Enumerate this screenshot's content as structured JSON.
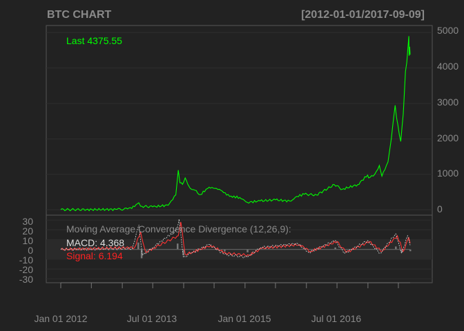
{
  "chart_data": [
    {
      "type": "line",
      "title": "BTC CHART",
      "date_range": "[2012-01-01/2017-09-09]",
      "last_label": "Last 4375.55",
      "series": [
        {
          "color": "#00ff00",
          "points": [
            [
              "2012-01-01",
              6
            ],
            [
              "2012-06-01",
              6
            ],
            [
              "2012-12-01",
              13
            ],
            [
              "2013-02-01",
              25
            ],
            [
              "2013-03-15",
              90
            ],
            [
              "2013-04-09",
              200
            ],
            [
              "2013-04-20",
              100
            ],
            [
              "2013-07-01",
              85
            ],
            [
              "2013-10-01",
              130
            ],
            [
              "2013-11-15",
              420
            ],
            [
              "2013-11-30",
              1120
            ],
            [
              "2013-12-10",
              760
            ],
            [
              "2013-12-25",
              720
            ],
            [
              "2014-01-10",
              900
            ],
            [
              "2014-02-10",
              600
            ],
            [
              "2014-03-01",
              570
            ],
            [
              "2014-04-10",
              430
            ],
            [
              "2014-06-01",
              640
            ],
            [
              "2014-08-01",
              580
            ],
            [
              "2014-10-01",
              380
            ],
            [
              "2014-12-01",
              350
            ],
            [
              "2015-01-15",
              210
            ],
            [
              "2015-04-01",
              250
            ],
            [
              "2015-07-01",
              280
            ],
            [
              "2015-10-01",
              245
            ],
            [
              "2015-11-05",
              380
            ],
            [
              "2015-12-20",
              440
            ],
            [
              "2016-03-01",
              420
            ],
            [
              "2016-06-15",
              710
            ],
            [
              "2016-08-01",
              580
            ],
            [
              "2016-11-01",
              710
            ],
            [
              "2016-12-30",
              980
            ],
            [
              "2017-01-05",
              900
            ],
            [
              "2017-02-10",
              1000
            ],
            [
              "2017-03-10",
              1250
            ],
            [
              "2017-03-25",
              950
            ],
            [
              "2017-04-30",
              1350
            ],
            [
              "2017-05-20",
              2000
            ],
            [
              "2017-06-12",
              2950
            ],
            [
              "2017-06-20",
              2600
            ],
            [
              "2017-07-15",
              1930
            ],
            [
              "2017-07-30",
              2700
            ],
            [
              "2017-08-12",
              3900
            ],
            [
              "2017-08-20",
              4150
            ],
            [
              "2017-09-01",
              4900
            ],
            [
              "2017-09-03",
              4350
            ],
            [
              "2017-09-06",
              4600
            ],
            [
              "2017-09-09",
              4375.55
            ]
          ]
        }
      ],
      "ylim": [
        -150,
        5200
      ],
      "yticks": [
        0,
        1000,
        2000,
        3000,
        4000,
        5000
      ]
    },
    {
      "type": "line",
      "title": "Moving Average Convergence Divergence (12,26,9):",
      "macd_label": "MACD: 4.368",
      "signal_label": "Signal: 6.194",
      "ylim": [
        -34,
        35
      ],
      "yticks": [
        30,
        20,
        10,
        0,
        -10,
        -20,
        -30
      ],
      "series": [
        {
          "color": "#dddddd",
          "points": [
            [
              "2012-01-01",
              0
            ],
            [
              "2013-03-01",
              1
            ],
            [
              "2013-04-10",
              25
            ],
            [
              "2013-05-01",
              -6
            ],
            [
              "2013-07-01",
              2
            ],
            [
              "2013-11-20",
              20
            ],
            [
              "2013-12-05",
              31
            ],
            [
              "2013-12-30",
              -8
            ],
            [
              "2014-02-15",
              -4
            ],
            [
              "2014-06-01",
              5
            ],
            [
              "2014-09-01",
              -5
            ],
            [
              "2015-01-15",
              -8
            ],
            [
              "2015-04-01",
              2
            ],
            [
              "2015-11-10",
              6
            ],
            [
              "2016-01-15",
              -3
            ],
            [
              "2016-06-20",
              9
            ],
            [
              "2016-08-15",
              -4
            ],
            [
              "2016-12-31",
              9
            ],
            [
              "2017-03-15",
              -4
            ],
            [
              "2017-06-15",
              16
            ],
            [
              "2017-07-20",
              -4
            ],
            [
              "2017-08-25",
              14
            ],
            [
              "2017-09-09",
              4.368
            ]
          ]
        },
        {
          "color": "#ff3333",
          "points": [
            [
              "2012-01-01",
              0
            ],
            [
              "2013-03-15",
              2
            ],
            [
              "2013-04-20",
              18
            ],
            [
              "2013-05-20",
              -3
            ],
            [
              "2013-07-01",
              1
            ],
            [
              "2013-11-30",
              14
            ],
            [
              "2013-12-15",
              28
            ],
            [
              "2014-01-10",
              -5
            ],
            [
              "2014-02-20",
              -3
            ],
            [
              "2014-06-10",
              4
            ],
            [
              "2014-09-10",
              -4
            ],
            [
              "2015-01-25",
              -6
            ],
            [
              "2015-04-10",
              1
            ],
            [
              "2015-11-20",
              5
            ],
            [
              "2016-01-25",
              -2
            ],
            [
              "2016-07-01",
              8
            ],
            [
              "2016-08-25",
              -3
            ],
            [
              "2017-01-10",
              8
            ],
            [
              "2017-03-25",
              -2
            ],
            [
              "2017-06-25",
              14
            ],
            [
              "2017-07-30",
              -2
            ],
            [
              "2017-09-01",
              12
            ],
            [
              "2017-09-09",
              6.194
            ]
          ]
        },
        {
          "color": "#777777",
          "kind": "histogram",
          "points": [
            [
              "2013-04-05",
              7
            ],
            [
              "2013-04-25",
              -9
            ],
            [
              "2013-11-25",
              6
            ],
            [
              "2013-12-30",
              -6
            ],
            [
              "2014-09-01",
              -2
            ],
            [
              "2015-01-15",
              -3
            ],
            [
              "2016-06-20",
              2
            ],
            [
              "2017-06-15",
              3
            ],
            [
              "2017-07-20",
              -3
            ],
            [
              "2017-09-09",
              -1.8
            ]
          ]
        }
      ]
    }
  ],
  "x_tick_labels": [
    "Jan 01 2012",
    "Jul 01 2013",
    "Jan 01 2015",
    "Jul 01 2016"
  ]
}
